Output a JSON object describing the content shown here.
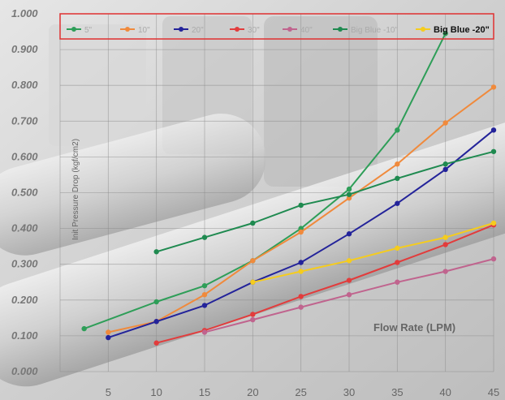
{
  "chart_data": {
    "type": "line",
    "title": "",
    "xlabel": "Flow Rate (LPM)",
    "ylabel": "Init Pressure Drop (kgf/cm2)",
    "xlim": [
      0,
      45
    ],
    "ylim": [
      0,
      1.0
    ],
    "x_ticks": [
      "5",
      "10",
      "15",
      "20",
      "25",
      "30",
      "35",
      "40",
      "45"
    ],
    "y_ticks": [
      "0.000",
      "0.100",
      "0.200",
      "0.300",
      "0.400",
      "0.500",
      "0.600",
      "0.700",
      "0.800",
      "0.900",
      "1.000"
    ],
    "grid": true,
    "legend_position": "top",
    "series": [
      {
        "name": "5\"",
        "color": "#2e9e58",
        "x": [
          2.5,
          10,
          15,
          20,
          25,
          30,
          35,
          40
        ],
        "y": [
          0.12,
          0.195,
          0.24,
          0.31,
          0.4,
          0.51,
          0.675,
          0.945
        ]
      },
      {
        "name": "10\"",
        "color": "#f08a3c",
        "x": [
          5,
          10,
          15,
          20,
          25,
          30,
          35,
          40,
          45
        ],
        "y": [
          0.11,
          0.14,
          0.215,
          0.31,
          0.39,
          0.485,
          0.58,
          0.695,
          0.795
        ]
      },
      {
        "name": "20\"",
        "color": "#23239a",
        "x": [
          5,
          10,
          15,
          20,
          25,
          30,
          35,
          40,
          45
        ],
        "y": [
          0.095,
          0.14,
          0.185,
          0.25,
          0.305,
          0.385,
          0.47,
          0.565,
          0.675
        ]
      },
      {
        "name": "30\"",
        "color": "#e23c3c",
        "x": [
          10,
          15,
          20,
          25,
          30,
          35,
          40,
          45
        ],
        "y": [
          0.08,
          0.115,
          0.16,
          0.21,
          0.255,
          0.305,
          0.355,
          0.41
        ]
      },
      {
        "name": "40\"",
        "color": "#c0648e",
        "x": [
          15,
          20,
          25,
          30,
          35,
          40,
          45
        ],
        "y": [
          0.11,
          0.145,
          0.18,
          0.215,
          0.25,
          0.28,
          0.315
        ]
      },
      {
        "name": "Big Blue -10\"",
        "color": "#1f8a50",
        "x": [
          10,
          15,
          20,
          25,
          30,
          35,
          40,
          45
        ],
        "y": [
          0.335,
          0.375,
          0.415,
          0.465,
          0.495,
          0.54,
          0.58,
          0.615
        ]
      },
      {
        "name": "Big Blue -20\"",
        "color": "#f5cc1e",
        "x": [
          20,
          25,
          30,
          35,
          40,
          45
        ],
        "y": [
          0.25,
          0.28,
          0.31,
          0.345,
          0.375,
          0.415
        ]
      }
    ]
  }
}
